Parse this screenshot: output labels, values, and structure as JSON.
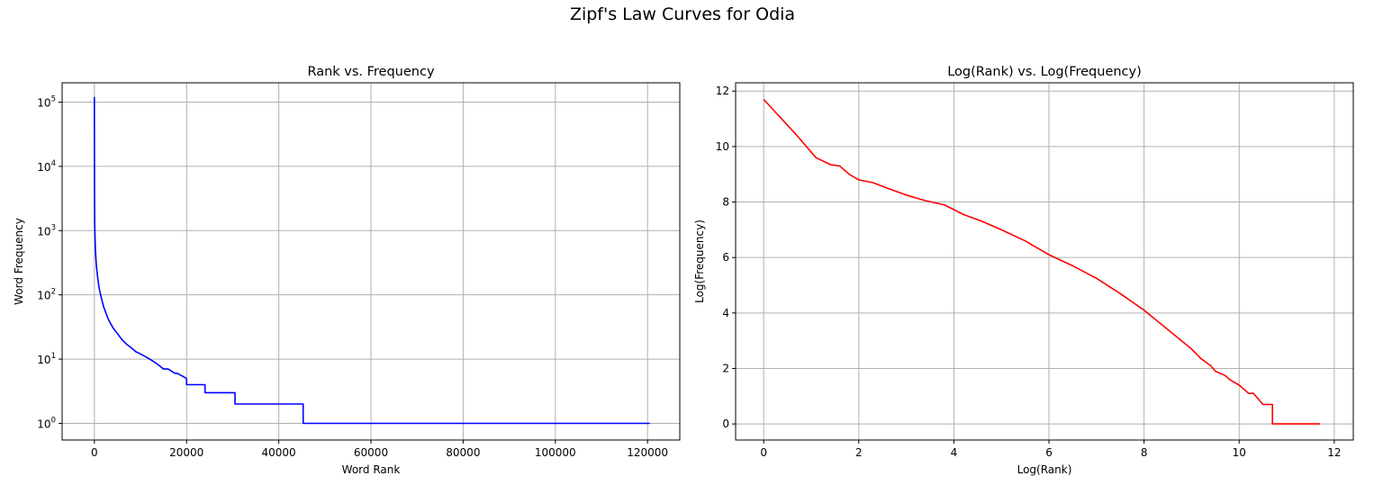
{
  "figure": {
    "title": "Zipf's Law Curves for Odia"
  },
  "chart_data": [
    {
      "type": "line",
      "title": "Rank vs. Frequency",
      "xlabel": "Word Rank",
      "ylabel": "Word Frequency",
      "xlim": [
        -7000,
        127000
      ],
      "ylim": [
        0.55,
        200000
      ],
      "yscale": "log",
      "grid": true,
      "line_color": "#0000ff",
      "xticks": [
        0,
        20000,
        40000,
        60000,
        80000,
        100000,
        120000
      ],
      "xtick_labels": [
        "0",
        "20000",
        "40000",
        "60000",
        "80000",
        "100000",
        "120000"
      ],
      "yticks": [
        1,
        10,
        100,
        1000,
        10000,
        100000
      ],
      "ytick_base": "10",
      "ytick_exponents": [
        "0",
        "1",
        "2",
        "3",
        "4",
        "5"
      ],
      "series": [
        {
          "x": [
            1,
            10,
            30,
            80,
            200,
            400,
            700,
            1000,
            1500,
            2000,
            3000,
            4000,
            5000,
            6000,
            7000,
            8000,
            9000,
            10000,
            11000,
            12000,
            13000,
            14000,
            15000,
            16000,
            17500,
            18000,
            20000,
            20000,
            24000,
            24000,
            30500,
            30500,
            45300,
            45300,
            120500
          ],
          "y": [
            120000,
            15000,
            3500,
            1200,
            520,
            300,
            190,
            130,
            90,
            65,
            42,
            31,
            25,
            20,
            17,
            15,
            13,
            12,
            11,
            10,
            9,
            8,
            7,
            7,
            6,
            6,
            5,
            4,
            4,
            3,
            3,
            2,
            2,
            1,
            1
          ]
        }
      ]
    },
    {
      "type": "line",
      "title": "Log(Rank) vs. Log(Frequency)",
      "xlabel": "Log(Rank)",
      "ylabel": "Log(Frequency)",
      "xlim": [
        -0.59,
        12.4
      ],
      "ylim": [
        -0.58,
        12.3
      ],
      "grid": true,
      "line_color": "#ff0000",
      "xticks": [
        0,
        2,
        4,
        6,
        8,
        10,
        12
      ],
      "xtick_labels": [
        "0",
        "2",
        "4",
        "6",
        "8",
        "10",
        "12"
      ],
      "yticks": [
        0,
        2,
        4,
        6,
        8,
        10,
        12
      ],
      "ytick_labels": [
        "0",
        "2",
        "4",
        "6",
        "8",
        "10",
        "12"
      ],
      "series": [
        {
          "x": [
            0,
            0.7,
            1.1,
            1.4,
            1.6,
            1.8,
            2.0,
            2.3,
            2.6,
            3.0,
            3.4,
            3.8,
            4.2,
            4.6,
            5.0,
            5.5,
            6.0,
            6.5,
            7.0,
            7.5,
            8.0,
            8.5,
            9.0,
            9.2,
            9.4,
            9.5,
            9.7,
            9.8,
            10.0,
            10.2,
            10.3,
            10.5,
            10.7,
            10.7,
            11.7
          ],
          "y": [
            11.7,
            10.4,
            9.6,
            9.35,
            9.3,
            9.0,
            8.8,
            8.7,
            8.5,
            8.25,
            8.05,
            7.9,
            7.55,
            7.3,
            7.0,
            6.6,
            6.1,
            5.7,
            5.25,
            4.7,
            4.1,
            3.4,
            2.7,
            2.35,
            2.1,
            1.9,
            1.75,
            1.6,
            1.4,
            1.1,
            1.1,
            0.7,
            0.7,
            0.0,
            0.0
          ]
        }
      ]
    }
  ]
}
